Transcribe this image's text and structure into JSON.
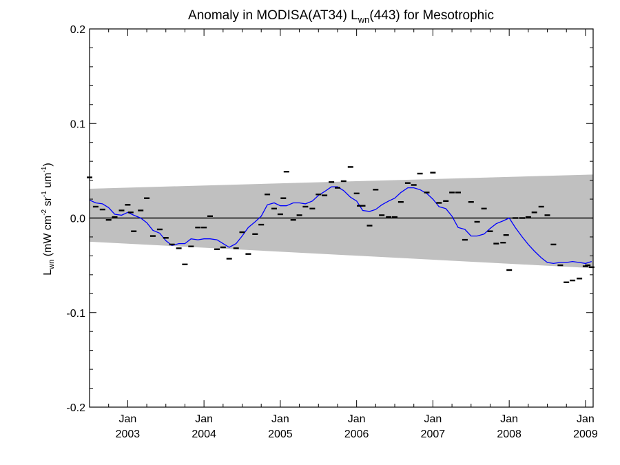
{
  "chart_data": {
    "type": "scatter",
    "title": {
      "main": "Anomaly in MODISA(AT34) L",
      "sub": "wn",
      "rest": "(443) for Mesotrophic"
    },
    "ylabel": {
      "base": "L",
      "base_sub": "wn",
      "units_open": " (mW cm",
      "exp1": "-2",
      "sr": " sr",
      "exp2": "-1",
      "um": " um",
      "exp3": "-1",
      "units_close": ")"
    },
    "xlim": [
      2002.5,
      2009.1
    ],
    "ylim": [
      -0.2,
      0.2
    ],
    "y_ticks": [
      {
        "v": 0.2,
        "label": "0.2"
      },
      {
        "v": 0.1,
        "label": "0.1"
      },
      {
        "v": 0.0,
        "label": "0.0"
      },
      {
        "v": -0.1,
        "label": "-0.1"
      },
      {
        "v": -0.2,
        "label": "-0.2"
      }
    ],
    "x_ticks": [
      {
        "v": 2003.0,
        "month": "Jan",
        "year": "2003"
      },
      {
        "v": 2004.0,
        "month": "Jan",
        "year": "2004"
      },
      {
        "v": 2005.0,
        "month": "Jan",
        "year": "2005"
      },
      {
        "v": 2006.0,
        "month": "Jan",
        "year": "2006"
      },
      {
        "v": 2007.0,
        "month": "Jan",
        "year": "2007"
      },
      {
        "v": 2008.0,
        "month": "Jan",
        "year": "2008"
      },
      {
        "v": 2009.0,
        "month": "Jan",
        "year": "2009"
      }
    ],
    "colors": {
      "band": "#c0c0c0",
      "smooth_line": "#0000ff",
      "points": "#000000",
      "zero_line": "#000000"
    },
    "grid": false,
    "band": {
      "x": [
        2002.5,
        2009.1
      ],
      "upper": [
        0.031,
        0.046
      ],
      "lower": [
        -0.025,
        -0.053
      ]
    },
    "zero_line": 0.0,
    "points": {
      "x": [
        2002.5,
        2002.58,
        2002.67,
        2002.75,
        2002.83,
        2002.92,
        2003.0,
        2003.04,
        2003.08,
        2003.17,
        2003.25,
        2003.33,
        2003.42,
        2003.5,
        2003.58,
        2003.67,
        2003.75,
        2003.83,
        2003.92,
        2004.0,
        2004.08,
        2004.17,
        2004.25,
        2004.33,
        2004.42,
        2004.5,
        2004.58,
        2004.67,
        2004.75,
        2004.83,
        2004.92,
        2005.0,
        2005.04,
        2005.08,
        2005.17,
        2005.25,
        2005.33,
        2005.42,
        2005.5,
        2005.58,
        2005.67,
        2005.75,
        2005.83,
        2005.92,
        2006.0,
        2006.04,
        2006.08,
        2006.17,
        2006.25,
        2006.33,
        2006.42,
        2006.5,
        2006.58,
        2006.67,
        2006.75,
        2006.83,
        2006.92,
        2007.0,
        2007.08,
        2007.17,
        2007.25,
        2007.33,
        2007.42,
        2007.5,
        2007.58,
        2007.67,
        2007.75,
        2007.83,
        2007.92,
        2007.96,
        2008.0,
        2008.08,
        2008.17,
        2008.25,
        2008.33,
        2008.42,
        2008.5,
        2008.58,
        2008.67,
        2008.75,
        2008.83,
        2008.92,
        2009.0,
        2009.03,
        2009.08
      ],
      "y": [
        0.043,
        0.012,
        0.009,
        -0.002,
        0.001,
        0.008,
        0.014,
        0.006,
        -0.014,
        0.008,
        0.021,
        -0.019,
        -0.012,
        -0.021,
        -0.028,
        -0.032,
        -0.049,
        -0.03,
        -0.01,
        -0.01,
        0.002,
        -0.033,
        -0.031,
        -0.043,
        -0.032,
        -0.015,
        -0.038,
        -0.017,
        -0.007,
        0.025,
        0.01,
        0.004,
        0.021,
        0.049,
        -0.002,
        0.003,
        0.012,
        0.01,
        0.025,
        0.024,
        0.038,
        0.032,
        0.039,
        0.054,
        0.026,
        0.013,
        0.013,
        -0.008,
        0.03,
        0.003,
        0.001,
        0.001,
        0.017,
        0.037,
        0.035,
        0.047,
        0.027,
        0.048,
        0.016,
        0.018,
        0.027,
        0.027,
        -0.023,
        0.017,
        -0.004,
        0.01,
        -0.014,
        -0.027,
        -0.026,
        -0.018,
        -0.055,
        0.0,
        0.0,
        0.001,
        0.006,
        0.012,
        0.003,
        -0.028,
        -0.05,
        -0.068,
        -0.066,
        -0.064,
        -0.051,
        -0.05,
        -0.052
      ]
    },
    "smooth": {
      "x": [
        2002.5,
        2002.58,
        2002.67,
        2002.75,
        2002.83,
        2002.92,
        2003.0,
        2003.08,
        2003.17,
        2003.25,
        2003.33,
        2003.42,
        2003.5,
        2003.58,
        2003.67,
        2003.75,
        2003.83,
        2003.92,
        2004.0,
        2004.08,
        2004.17,
        2004.25,
        2004.33,
        2004.42,
        2004.5,
        2004.58,
        2004.67,
        2004.75,
        2004.83,
        2004.92,
        2005.0,
        2005.08,
        2005.17,
        2005.25,
        2005.33,
        2005.42,
        2005.5,
        2005.58,
        2005.67,
        2005.75,
        2005.83,
        2005.92,
        2006.0,
        2006.08,
        2006.17,
        2006.25,
        2006.33,
        2006.42,
        2006.5,
        2006.58,
        2006.67,
        2006.75,
        2006.83,
        2006.92,
        2007.0,
        2007.08,
        2007.17,
        2007.25,
        2007.33,
        2007.42,
        2007.5,
        2007.58,
        2007.67,
        2007.75,
        2007.83,
        2007.92,
        2008.0,
        2008.08,
        2008.17,
        2008.25,
        2008.33,
        2008.42,
        2008.5,
        2008.58,
        2008.67,
        2008.75,
        2008.83,
        2008.92,
        2009.0,
        2009.08
      ],
      "y": [
        0.019,
        0.016,
        0.015,
        0.011,
        0.004,
        0.003,
        0.006,
        0.003,
        0.0,
        -0.005,
        -0.013,
        -0.016,
        -0.024,
        -0.029,
        -0.027,
        -0.027,
        -0.022,
        -0.023,
        -0.022,
        -0.022,
        -0.023,
        -0.027,
        -0.031,
        -0.027,
        -0.019,
        -0.01,
        -0.004,
        0.002,
        0.014,
        0.016,
        0.013,
        0.013,
        0.016,
        0.016,
        0.015,
        0.018,
        0.024,
        0.028,
        0.033,
        0.033,
        0.029,
        0.022,
        0.018,
        0.008,
        0.007,
        0.009,
        0.014,
        0.018,
        0.021,
        0.027,
        0.032,
        0.032,
        0.03,
        0.026,
        0.02,
        0.012,
        0.01,
        0.002,
        -0.01,
        -0.012,
        -0.019,
        -0.019,
        -0.017,
        -0.011,
        -0.006,
        -0.003,
        0.0,
        -0.01,
        -0.02,
        -0.028,
        -0.035,
        -0.042,
        -0.047,
        -0.048,
        -0.047,
        -0.047,
        -0.046,
        -0.047,
        -0.048,
        -0.046
      ]
    }
  }
}
